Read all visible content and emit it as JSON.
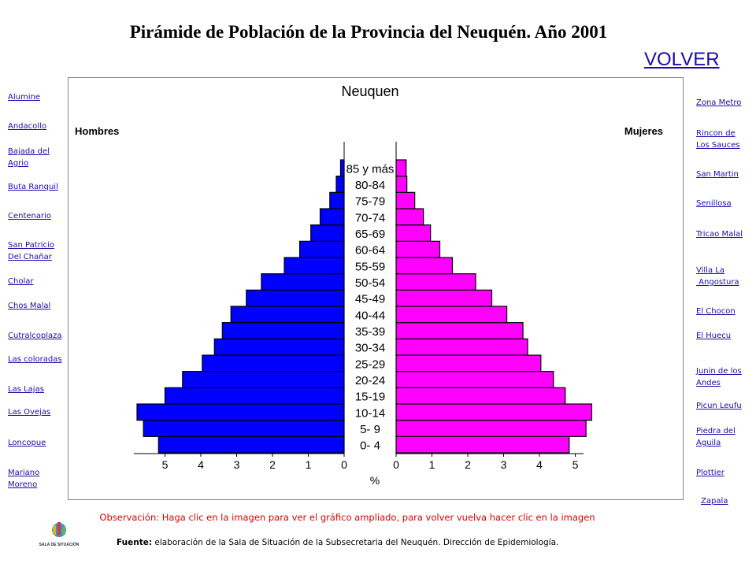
{
  "header": {
    "title": "Pirámide de Población de la Provincia del Neuquén. Año 2001",
    "back_link": "VOLVER"
  },
  "left_links": [
    "Alumine",
    "Andacollo",
    "Bajada del\nAgrio",
    "Buta Ranquil",
    "Centenario",
    "San Patricio\nDel Chañar",
    "Cholar",
    "Chos Malal",
    "Cutralcoplaza",
    "Las coloradas",
    "Las Lajas",
    "Las Ovejas",
    "Loncopue",
    "Mariano\nMoreno"
  ],
  "right_links": [
    "Zona Metro",
    "Rincon de\nLos Sauces",
    "San Martin",
    "Senillosa",
    "Tricao Malal",
    "Villa La\n Angostura",
    "El Chocon",
    "El Huecu",
    "Junin de los\nAndes",
    "Picun Leufu",
    "Piedra del\nAguila",
    "Plottier",
    "Zapala"
  ],
  "chart_data": {
    "type": "pyramid",
    "title": "Neuquen",
    "xlabel": "%",
    "categories": [
      "0- 4",
      "5- 9",
      "10-14",
      "15-19",
      "20-24",
      "25-29",
      "30-34",
      "35-39",
      "40-44",
      "45-49",
      "50-54",
      "55-59",
      "60-64",
      "65-69",
      "70-74",
      "75-79",
      "80-84",
      "85 y más"
    ],
    "series": [
      {
        "name": "Hombres",
        "color": "#0000ff",
        "values": [
          5.18,
          5.6,
          5.78,
          5.0,
          4.51,
          3.96,
          3.62,
          3.4,
          3.16,
          2.73,
          2.31,
          1.67,
          1.24,
          0.93,
          0.67,
          0.4,
          0.22,
          0.1
        ]
      },
      {
        "name": "Mujeres",
        "color": "#ff00ff",
        "values": [
          4.83,
          5.3,
          5.46,
          4.72,
          4.39,
          4.04,
          3.67,
          3.54,
          3.09,
          2.67,
          2.22,
          1.57,
          1.22,
          0.96,
          0.76,
          0.52,
          0.3,
          0.28
        ]
      }
    ],
    "xlim": [
      0,
      6
    ],
    "xticks": [
      0,
      1,
      2,
      3,
      4,
      5
    ]
  },
  "note": "Observación: Haga clic en la imagen para ver el gráfico ampliado, para volver vuelva hacer clic en la imagen",
  "source": {
    "label": "Fuente:",
    "text": "elaboración de la Sala de Situación de la Subsecretaria del Neuquén. Dirección de Epidemiología."
  },
  "logo": {
    "text": "SALA DE SITUACIÓN"
  }
}
